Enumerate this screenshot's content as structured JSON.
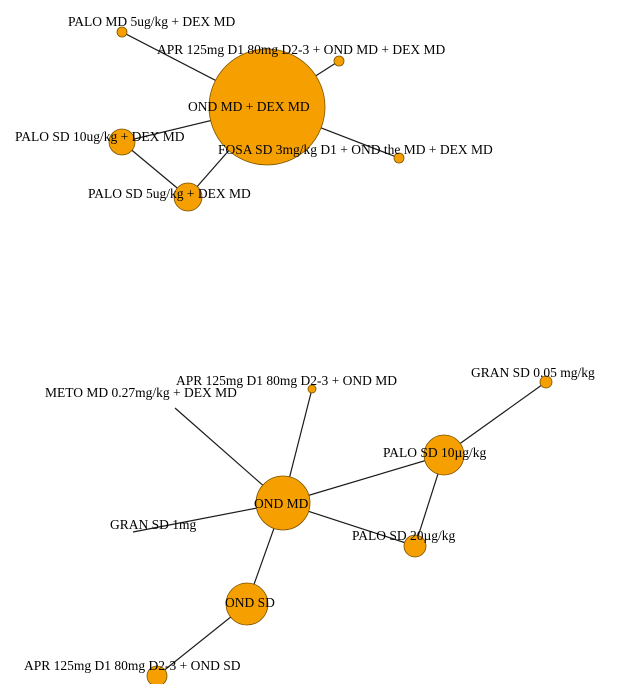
{
  "node_color": "#f5a000",
  "networks": [
    {
      "id": "network-1",
      "nodes": [
        {
          "id": "palo-md-5",
          "label": "PALO MD 5ug/kg + DEX MD"
        },
        {
          "id": "apr-ond-md-dex",
          "label": "APR 125mg D1 80mg D2-3 + OND MD + DEX MD"
        },
        {
          "id": "ond-md-dex",
          "label": "OND MD + DEX MD"
        },
        {
          "id": "palo-sd-10",
          "label": "PALO SD 10ug/kg + DEX MD"
        },
        {
          "id": "fosa",
          "label": "FOSA SD 3mg/kg D1 + OND the MD + DEX  MD"
        },
        {
          "id": "palo-sd-5",
          "label": "PALO SD 5ug/kg + DEX MD"
        }
      ],
      "edges": [
        [
          "ond-md-dex",
          "palo-md-5"
        ],
        [
          "ond-md-dex",
          "apr-ond-md-dex"
        ],
        [
          "ond-md-dex",
          "palo-sd-10"
        ],
        [
          "ond-md-dex",
          "fosa"
        ],
        [
          "ond-md-dex",
          "palo-sd-5"
        ],
        [
          "palo-sd-10",
          "palo-sd-5"
        ]
      ]
    },
    {
      "id": "network-2",
      "nodes": [
        {
          "id": "gran-005",
          "label": "GRAN SD 0.05 mg/kg"
        },
        {
          "id": "apr-ond-md",
          "label": "APR 125mg D1 80mg D2-3 + OND MD"
        },
        {
          "id": "meto",
          "label": "METO MD 0.27mg/kg + DEX MD"
        },
        {
          "id": "palo-sd-10ug",
          "label": "PALO SD 10µg/kg"
        },
        {
          "id": "ond-md",
          "label": "OND MD"
        },
        {
          "id": "gran-1",
          "label": "GRAN SD 1mg"
        },
        {
          "id": "palo-sd-20ug",
          "label": "PALO SD 20µg/kg"
        },
        {
          "id": "ond-sd",
          "label": "OND SD"
        },
        {
          "id": "apr-ond-sd",
          "label": "APR 125mg D1 80mg D2-3 + OND SD"
        }
      ],
      "edges": [
        [
          "ond-md",
          "meto"
        ],
        [
          "ond-md",
          "apr-ond-md"
        ],
        [
          "ond-md",
          "palo-sd-10ug"
        ],
        [
          "ond-md",
          "gran-1"
        ],
        [
          "ond-md",
          "palo-sd-20ug"
        ],
        [
          "ond-md",
          "ond-sd"
        ],
        [
          "palo-sd-10ug",
          "gran-005"
        ],
        [
          "palo-sd-10ug",
          "palo-sd-20ug"
        ],
        [
          "ond-sd",
          "apr-ond-sd"
        ]
      ]
    }
  ]
}
